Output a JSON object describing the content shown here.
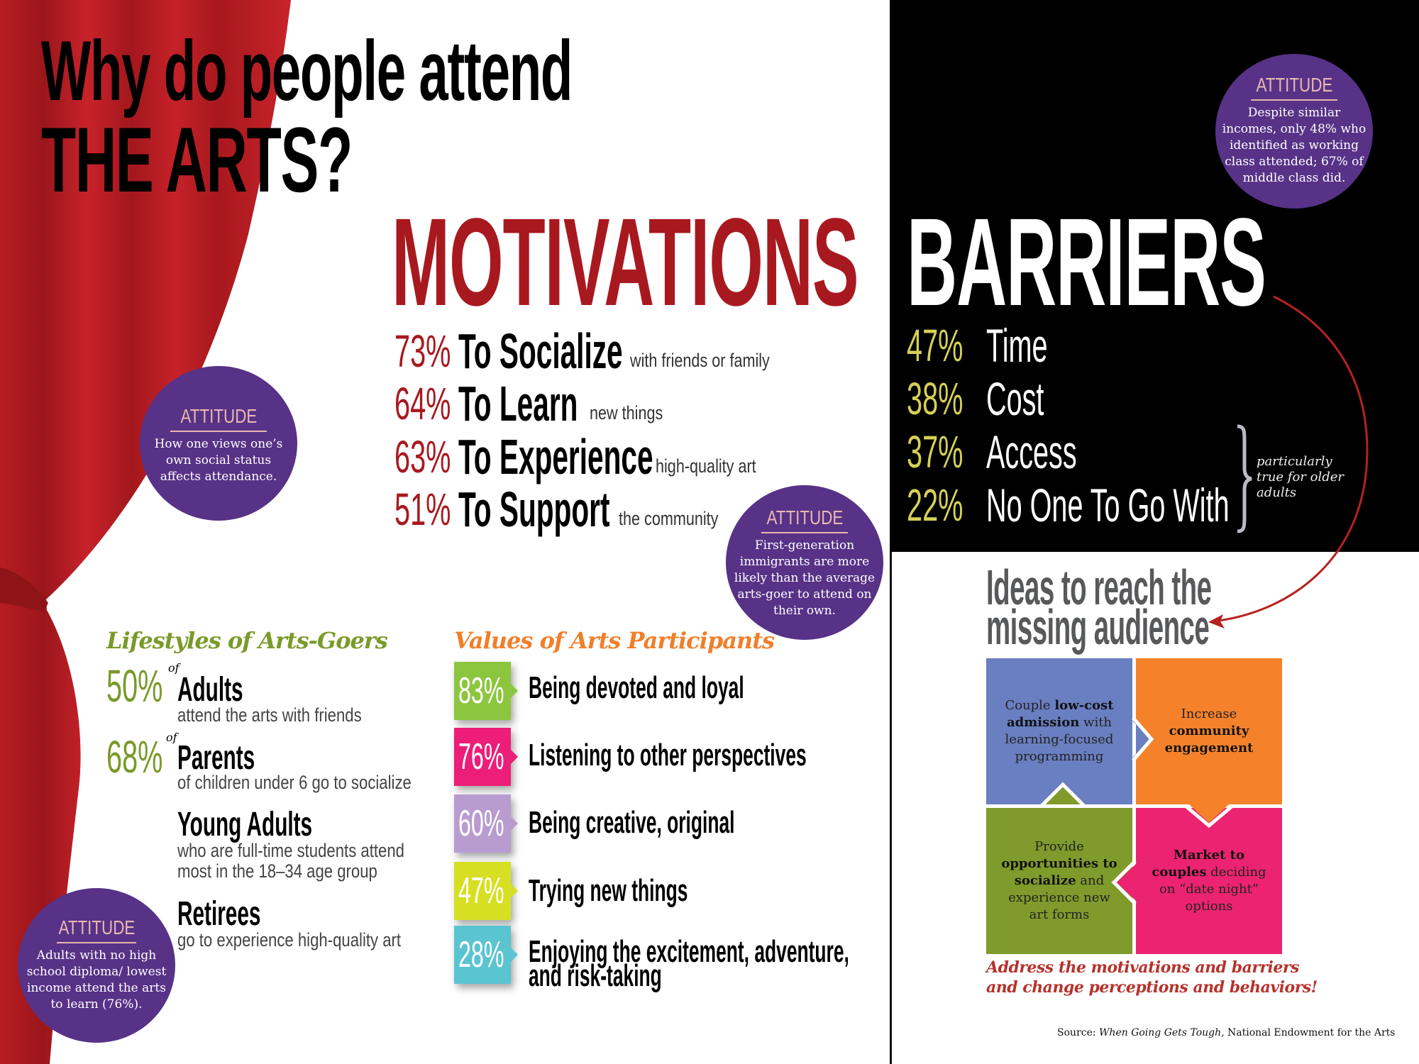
{
  "title": {
    "line1": "Why do people attend",
    "line2": "THE ARTS?"
  },
  "motivations": {
    "heading": "MOTIVATIONS",
    "items": [
      {
        "pct": "73%",
        "label": "To Socialize",
        "detail": "with friends or family"
      },
      {
        "pct": "64%",
        "label": "To Learn",
        "detail": "new things"
      },
      {
        "pct": "63%",
        "label": "To Experience",
        "detail": "high-quality art"
      },
      {
        "pct": "51%",
        "label": "To Support",
        "detail": "the community"
      }
    ]
  },
  "barriers": {
    "heading": "BARRIERS",
    "items": [
      {
        "pct": "47%",
        "label": "Time"
      },
      {
        "pct": "38%",
        "label": "Cost"
      },
      {
        "pct": "37%",
        "label": "Access"
      },
      {
        "pct": "22%",
        "label": "No One To Go With"
      }
    ],
    "bracket_note": [
      "particularly",
      "true for older",
      "adults"
    ]
  },
  "attitudes": [
    {
      "title": "ATTITUDE",
      "lines": [
        "Despite similar",
        "incomes, only 48% who",
        "identified as working",
        "class attended; 67% of",
        "middle class did."
      ]
    },
    {
      "title": "ATTITUDE",
      "lines": [
        "How one views one’s",
        "own social status",
        "affects attendance."
      ]
    },
    {
      "title": "ATTITUDE",
      "lines": [
        "First-generation",
        "immigrants are more",
        "likely than the average",
        "arts-goer to attend on",
        "their own."
      ]
    },
    {
      "title": "ATTITUDE",
      "lines": [
        "Adults with no high",
        "school diploma/ lowest",
        "income attend the arts",
        "to learn (76%)."
      ]
    }
  ],
  "lifestyles": {
    "heading": "Lifestyles of Arts-Goers",
    "items": [
      {
        "pct": "50%",
        "of": "of",
        "label": "Adults",
        "detail": [
          "attend the arts with friends"
        ]
      },
      {
        "pct": "68%",
        "of": "of",
        "label": "Parents",
        "detail": [
          "of children under 6 go to socialize"
        ]
      },
      {
        "pct": "",
        "of": "",
        "label": "Young Adults",
        "detail": [
          "who are full-time students attend",
          "most in the 18–34 age group"
        ]
      },
      {
        "pct": "",
        "of": "",
        "label": "Retirees",
        "detail": [
          "go to experience high-quality art"
        ]
      }
    ]
  },
  "values": {
    "heading": "Values of Arts Participants",
    "items": [
      {
        "pct": "83%",
        "label": "Being devoted and loyal",
        "color": "#8cc63f"
      },
      {
        "pct": "76%",
        "label": "Listening to other perspectives",
        "color": "#ec1e79"
      },
      {
        "pct": "60%",
        "label": "Being creative, original",
        "color": "#b89ccf"
      },
      {
        "pct": "47%",
        "label": "Trying new things",
        "color": "#d7df23"
      },
      {
        "pct": "28%",
        "label": "Enjoying the excitement, adventure,",
        "label2": "and risk-taking",
        "color": "#5bc4d1"
      }
    ]
  },
  "ideas": {
    "heading_line1": "Ideas to reach the",
    "heading_line2": "missing audience",
    "tiles": [
      {
        "color": "#6a7fc1",
        "parts": [
          [
            "Couple ",
            false
          ],
          [
            "low-cost admission",
            true
          ],
          [
            " with learning-focused programming",
            false
          ]
        ]
      },
      {
        "color": "#f5822a",
        "parts": [
          [
            "Increase ",
            false
          ],
          [
            "community engagement",
            true
          ]
        ]
      },
      {
        "color": "#7f9b2b",
        "parts": [
          [
            "Provide ",
            false
          ],
          [
            "opportunities to socialize",
            true
          ],
          [
            " and experience new art forms",
            false
          ]
        ]
      },
      {
        "color": "#ec2370",
        "parts": [
          [
            "Market to couples",
            true
          ],
          [
            " deciding on “date night” options",
            false
          ]
        ]
      }
    ],
    "cta_line1": "Address the motivations and barriers",
    "cta_line2": "and change perceptions and behaviors!"
  },
  "source": {
    "prefix": "Source: ",
    "title": "When Going Gets Tough,",
    "suffix": " National Endowment for the Arts"
  },
  "colors": {
    "motivation_red": "#a8191f",
    "barrier_yellow": "#d4d057",
    "attitude_purple": "#573287",
    "lifestyle_green": "#7a9a2a",
    "values_orange": "#f07f2a",
    "curtain_red": "#c41f26",
    "arrow_red": "#b5221f"
  }
}
